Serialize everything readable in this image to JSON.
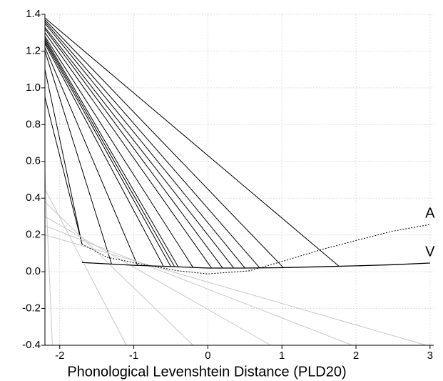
{
  "chart_data": {
    "type": "line",
    "x_label": "Phonological Levenshtein Distance (PLD20)",
    "xlim": [
      -2.2,
      3.05
    ],
    "ylim": [
      -0.4,
      1.4
    ],
    "xticks": [
      -2,
      -1,
      0,
      1,
      2,
      3
    ],
    "yticks": [
      -0.4,
      -0.2,
      {
        "value": 0,
        "label": "0.0"
      },
      0.2,
      0.4,
      0.6,
      0.8,
      {
        "value": 1,
        "label": "1.0"
      },
      1.2,
      1.4
    ],
    "grid": true,
    "series": [
      {
        "name": "A",
        "color": "#000000",
        "dash": true,
        "x": [
          -1.7,
          -1.36,
          -0.88,
          -0.4,
          0,
          0.56,
          1.04,
          1.53,
          2.0,
          2.49,
          3.0
        ],
        "values": [
          0.15,
          0.078,
          0.04,
          0.005,
          -0.012,
          0.005,
          0.06,
          0.12,
          0.17,
          0.22,
          0.257
        ]
      },
      {
        "name": "V",
        "color": "#000000",
        "dash": false,
        "x": [
          -1.7,
          -1.0,
          -0.5,
          0,
          0.5,
          1.0,
          1.5,
          2.0,
          2.5,
          3.0
        ],
        "values": [
          0.05,
          0.035,
          0.028,
          0.02,
          0.02,
          0.022,
          0.027,
          0.032,
          0.038,
          0.047
        ]
      }
    ],
    "connectors": [
      {
        "color": "#000000",
        "lines": [
          [
            -2.2,
            1.38,
            1.77,
            0.03
          ],
          [
            -2.2,
            1.37,
            1.02,
            0.022
          ],
          [
            -2.2,
            1.36,
            0.7,
            0.021
          ],
          [
            -2.2,
            1.35,
            0.5,
            0.02
          ],
          [
            -2.2,
            1.33,
            0.35,
            0.02
          ],
          [
            -2.2,
            1.32,
            0.2,
            0.02
          ],
          [
            -2.2,
            1.3,
            0.05,
            0.02
          ],
          [
            -2.2,
            1.28,
            -0.2,
            0.023
          ],
          [
            -2.2,
            1.27,
            -0.4,
            0.026
          ],
          [
            -2.2,
            1.26,
            -0.45,
            0.027
          ],
          [
            -2.2,
            1.25,
            -0.5,
            0.028
          ],
          [
            -2.2,
            1.24,
            -0.6,
            0.03
          ],
          [
            -2.2,
            1.22,
            -0.95,
            0.035
          ],
          [
            -2.2,
            1.2,
            -1.3,
            0.042
          ],
          [
            -2.2,
            1.1,
            -1.7,
            0.15
          ],
          [
            -2.2,
            0.95,
            -1.7,
            0.15
          ]
        ]
      },
      {
        "color": "#c8c8c8",
        "lines": [
          [
            -2.2,
            0.55,
            -2.1,
            -0.4
          ],
          [
            -2.2,
            0.45,
            -1.1,
            -0.4
          ],
          [
            -2.2,
            0.38,
            -0.2,
            -0.4
          ],
          [
            -2.2,
            0.3,
            0.85,
            -0.4
          ],
          [
            -2.2,
            0.25,
            1.95,
            -0.4
          ],
          [
            -2.2,
            0.2,
            2.95,
            -0.4
          ]
        ]
      }
    ]
  }
}
